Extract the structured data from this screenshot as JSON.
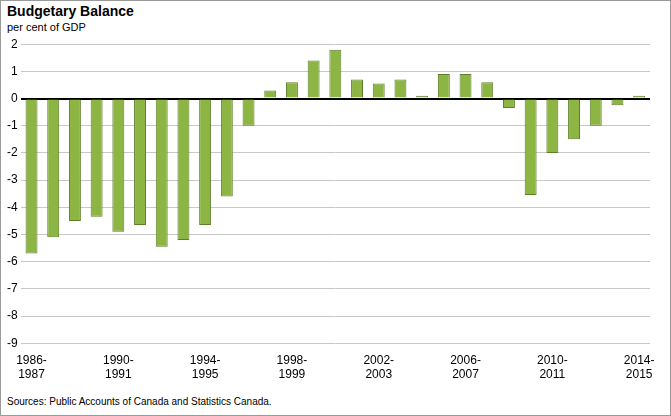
{
  "chart_data": {
    "type": "bar",
    "title": "Budgetary Balance",
    "ylabel": "per cent of GDP",
    "note": "Sources: Public Accounts of Canada and Statistics Canada.",
    "categories": [
      "1986-1987",
      null,
      null,
      null,
      "1990-1991",
      null,
      null,
      null,
      "1994-1995",
      null,
      null,
      null,
      "1998-1999",
      null,
      null,
      null,
      "2002-2003",
      null,
      null,
      null,
      "2006-2007",
      null,
      null,
      null,
      "2010-2011",
      null,
      null,
      null,
      "2014-2015"
    ],
    "values": [
      -5.7,
      -5.1,
      -4.5,
      -4.35,
      -4.9,
      -4.65,
      -5.45,
      -5.2,
      -4.65,
      -3.6,
      -1.0,
      0.3,
      0.6,
      1.4,
      1.8,
      0.7,
      0.55,
      0.7,
      0.1,
      0.9,
      0.9,
      0.6,
      -0.35,
      -3.55,
      -2.0,
      -1.5,
      -1.0,
      -0.25,
      0.1
    ],
    "color": "#8db543",
    "ylim": [
      -9,
      2
    ],
    "yticks": [
      -9,
      -8,
      -7,
      -6,
      -5,
      -4,
      -3,
      -2,
      -1,
      0,
      1,
      2
    ],
    "grid": true
  }
}
